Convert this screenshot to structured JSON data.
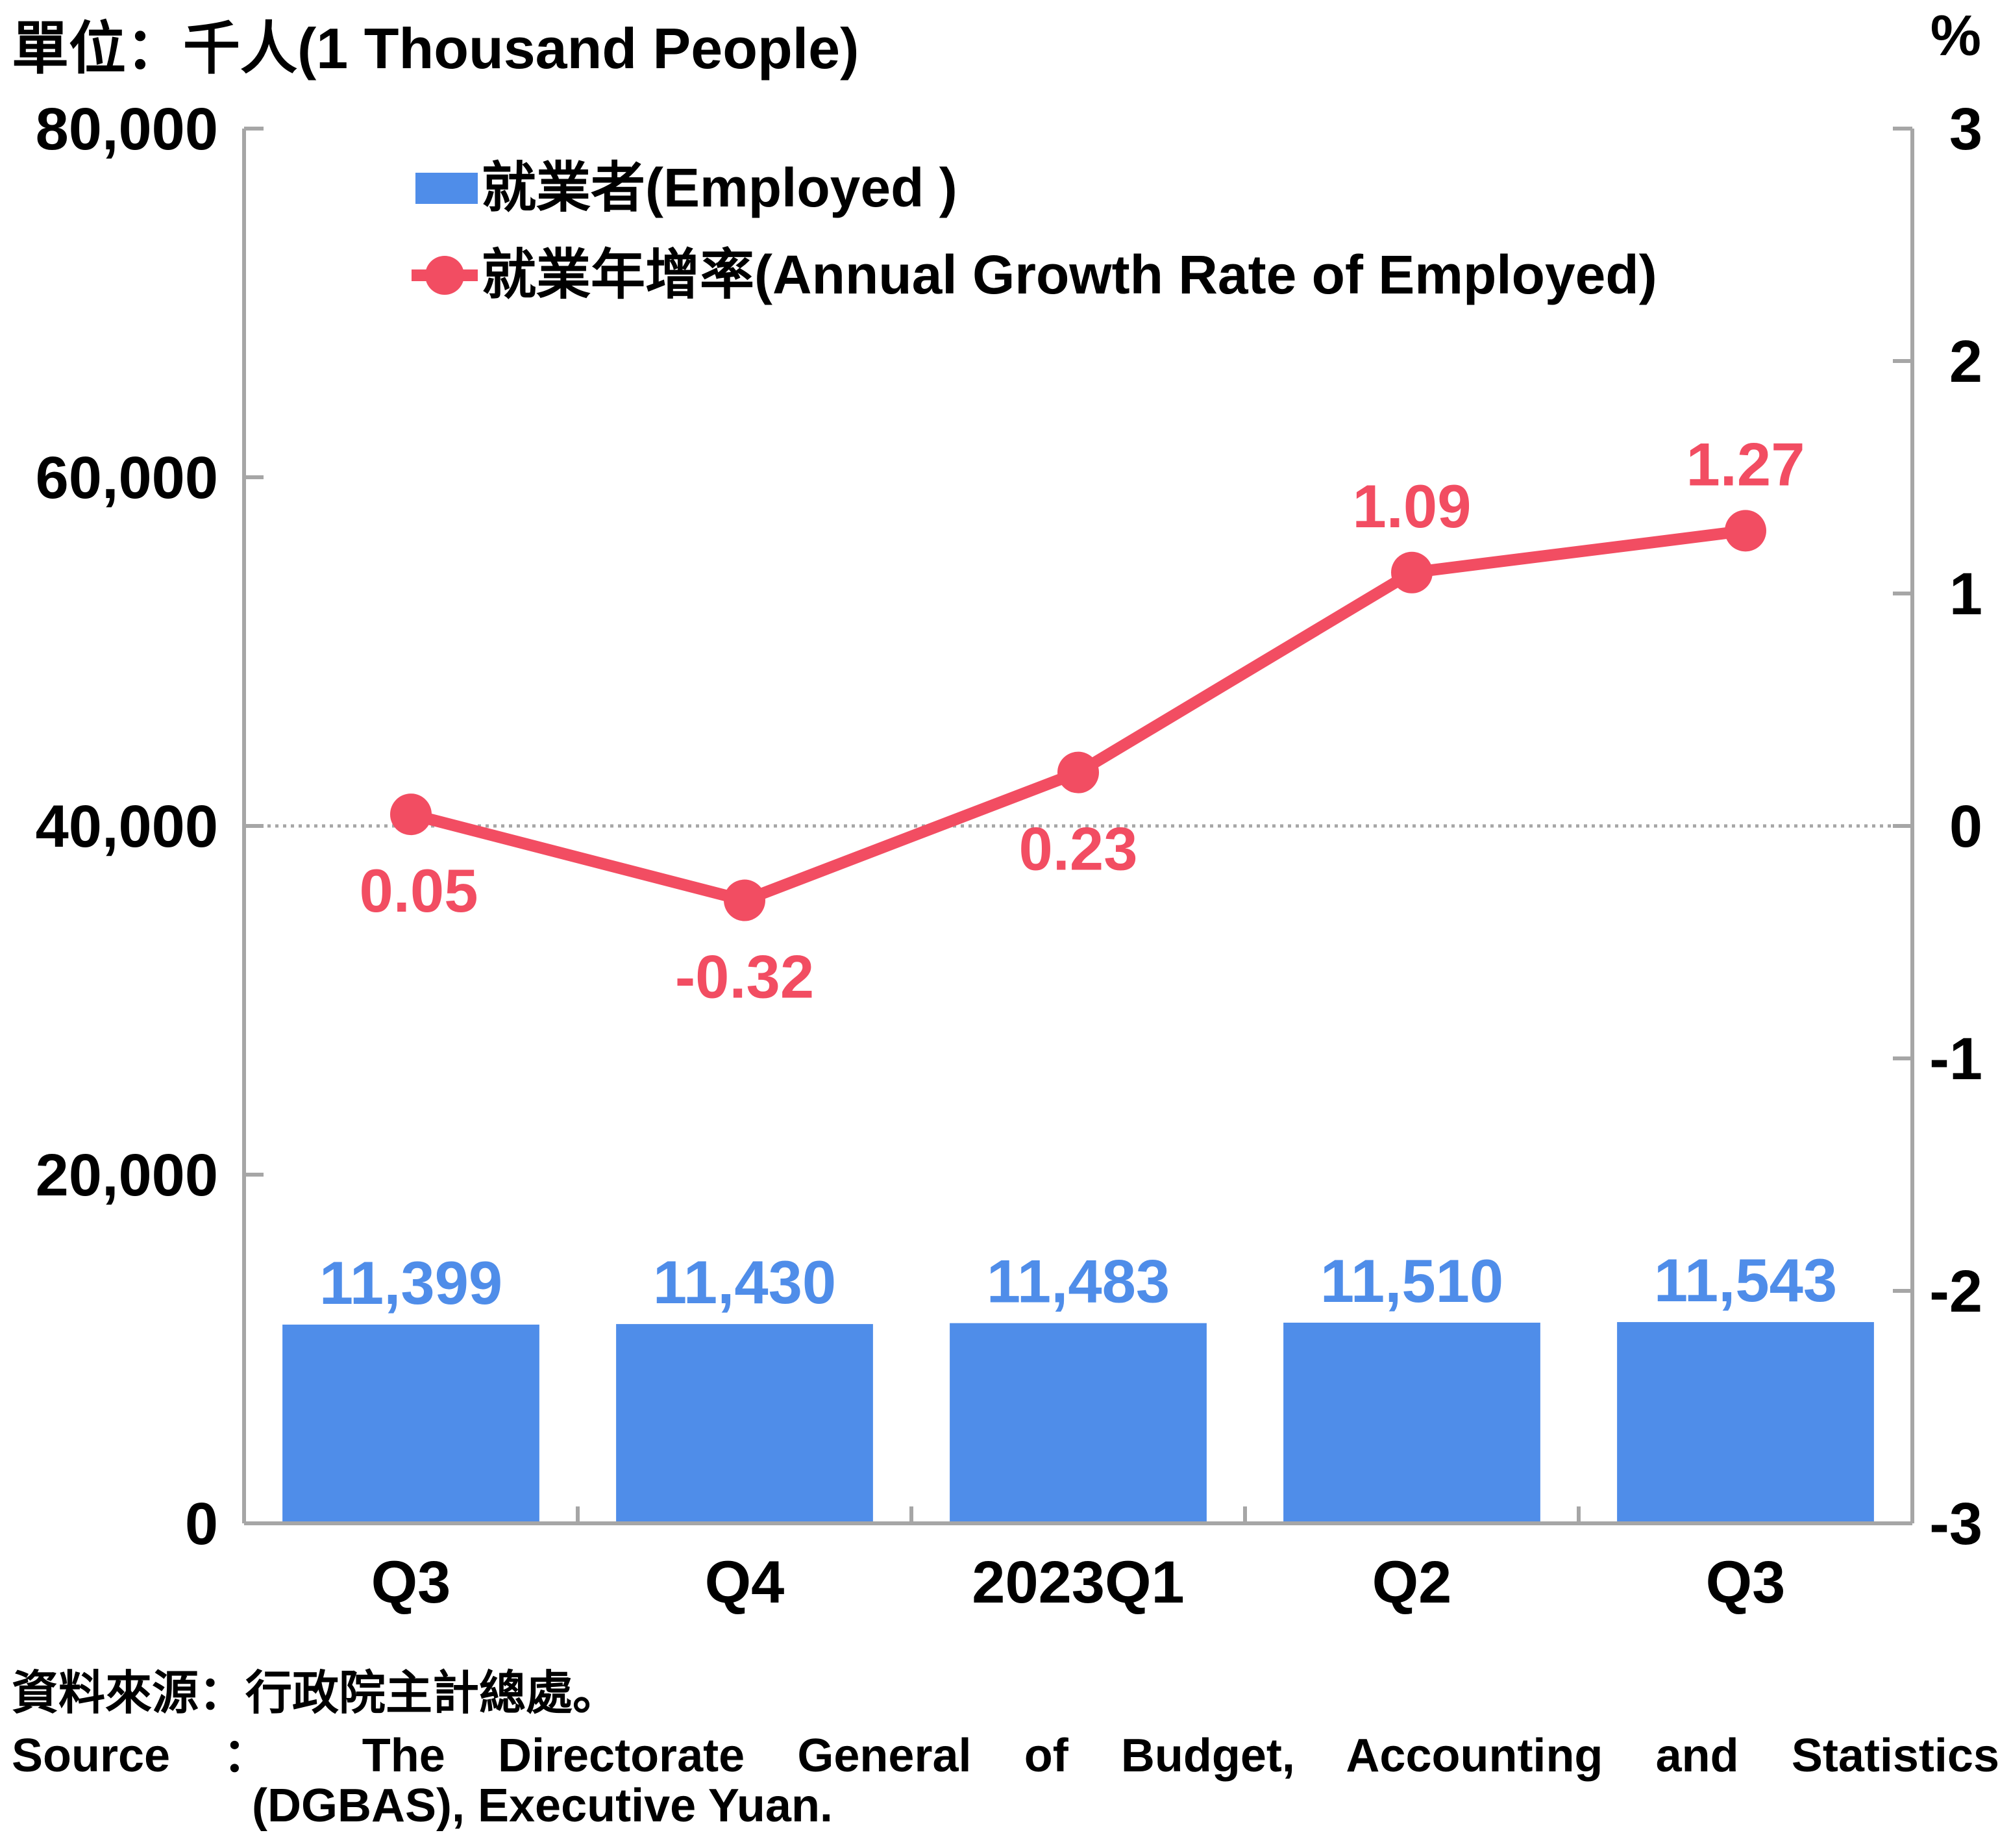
{
  "chart_data": {
    "type": "bar",
    "unit_left": "單位：千人(1 Thousand People)",
    "unit_right": "%",
    "categories": [
      "Q3",
      "Q4",
      "2023Q1",
      "Q2",
      "Q3"
    ],
    "y_left": {
      "min": 0,
      "max": 80000,
      "ticks": [
        "0",
        "20,000",
        "40,000",
        "60,000",
        "80,000"
      ]
    },
    "y_right": {
      "min": -3,
      "max": 3,
      "ticks": [
        "-3",
        "-2",
        "-1",
        "0",
        "1",
        "2",
        "3"
      ]
    },
    "series": [
      {
        "name": "就業者(Employed )",
        "type": "bar",
        "axis": "left",
        "color": "#4f8de9",
        "values": [
          11399,
          11430,
          11483,
          11510,
          11543
        ],
        "labels": [
          "11,399",
          "11,430",
          "11,483",
          "11,510",
          "11,543"
        ]
      },
      {
        "name": "就業年增率(Annual Growth Rate of Employed)",
        "type": "line",
        "axis": "right",
        "color": "#f24d62",
        "values": [
          0.05,
          -0.32,
          0.23,
          1.09,
          1.27
        ],
        "labels": [
          "0.05",
          "-0.32",
          "0.23",
          "1.09",
          "1.27"
        ]
      }
    ],
    "reference_line": {
      "axis": "right",
      "value": 0,
      "style": "dotted"
    },
    "legend_position": "top-left"
  },
  "source": {
    "zh": "資料來源：行政院主計總處。",
    "en_line1": "Source ： The Directorate General of Budget, Accounting and Statistics",
    "en_line2": "(DGBAS), Executive Yuan."
  }
}
